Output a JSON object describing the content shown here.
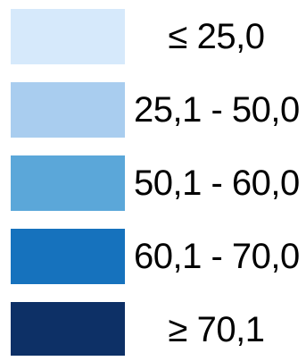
{
  "legend": {
    "items": [
      {
        "label": "≤ 25,0",
        "color": "#d6e9fb"
      },
      {
        "label": "25,1 - 50,0",
        "color": "#a9cdef"
      },
      {
        "label": "50,1 - 60,0",
        "color": "#5ba7d9"
      },
      {
        "label": "60,1 - 70,0",
        "color": "#1672bd"
      },
      {
        "label": "≥ 70,1",
        "color": "#0d3066"
      }
    ]
  }
}
